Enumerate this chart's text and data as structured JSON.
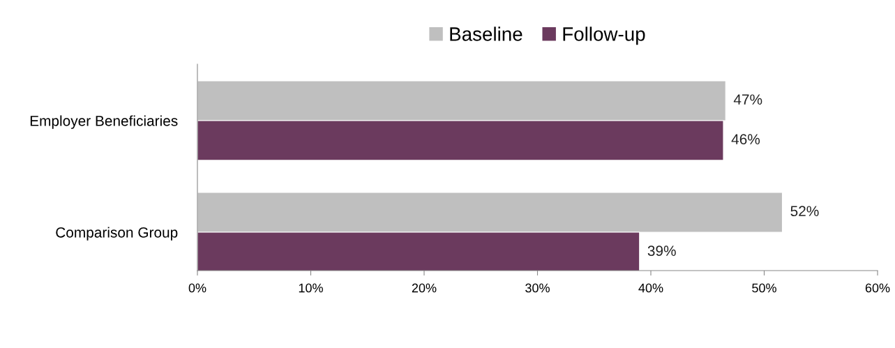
{
  "chart_data": {
    "type": "bar",
    "orientation": "horizontal",
    "categories": [
      "Employer Beneficiaries",
      "Comparison Group"
    ],
    "series": [
      {
        "name": "Baseline",
        "color": "#bfbfbf",
        "values": [
          46.6,
          51.6
        ],
        "value_labels": [
          "47%",
          "52%"
        ]
      },
      {
        "name": "Follow-up",
        "color": "#6b3a5e",
        "values": [
          46.4,
          39.0
        ],
        "value_labels": [
          "46%",
          "39%"
        ]
      }
    ],
    "xlim": [
      0,
      60
    ],
    "xticks": [
      {
        "value": 0,
        "label": "0%"
      },
      {
        "value": 10,
        "label": "10%"
      },
      {
        "value": 20,
        "label": "20%"
      },
      {
        "value": 30,
        "label": "30%"
      },
      {
        "value": 40,
        "label": "40%"
      },
      {
        "value": 50,
        "label": "50%"
      },
      {
        "value": 60,
        "label": "60%"
      }
    ],
    "legend": "top",
    "grid": false
  }
}
